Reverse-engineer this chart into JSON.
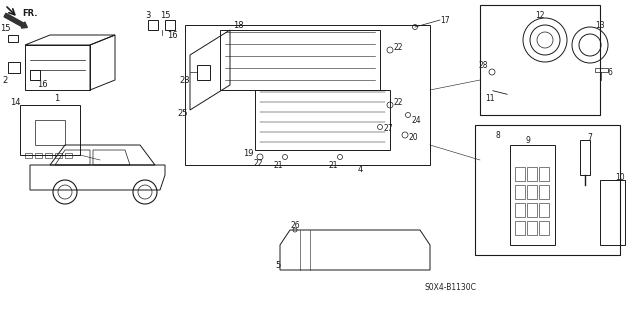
{
  "title": "",
  "bg_color": "#ffffff",
  "diagram_code": "S0X4-B1130C",
  "fr_label": "FR.",
  "part_numbers": [
    1,
    2,
    3,
    4,
    5,
    6,
    7,
    8,
    9,
    10,
    11,
    12,
    13,
    14,
    15,
    16,
    17,
    18,
    19,
    20,
    21,
    22,
    23,
    24,
    25,
    26,
    27,
    28
  ],
  "line_color": "#1a1a1a",
  "fig_width": 6.4,
  "fig_height": 3.2,
  "dpi": 100
}
